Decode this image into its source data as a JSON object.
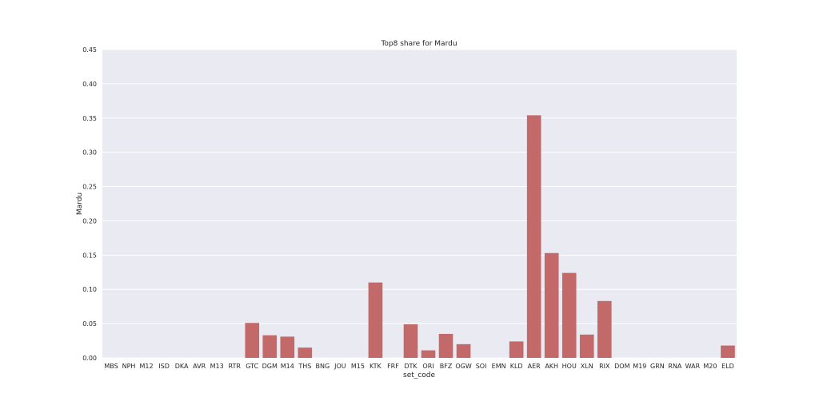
{
  "chart_data": {
    "type": "bar",
    "title": "Top8 share for Mardu",
    "xlabel": "set_code",
    "ylabel": "Mardu",
    "ylim": [
      0,
      0.45
    ],
    "yticks": [
      "0.00",
      "0.05",
      "0.10",
      "0.15",
      "0.20",
      "0.25",
      "0.30",
      "0.35",
      "0.40",
      "0.45"
    ],
    "grid": true,
    "bar_color": "#c4696a",
    "background_color": "#eaeaf2",
    "categories": [
      "MBS",
      "NPH",
      "M12",
      "ISD",
      "DKA",
      "AVR",
      "M13",
      "RTR",
      "GTC",
      "DGM",
      "M14",
      "THS",
      "BNG",
      "JOU",
      "M15",
      "KTK",
      "FRF",
      "DTK",
      "ORI",
      "BFZ",
      "OGW",
      "SOI",
      "EMN",
      "KLD",
      "AER",
      "AKH",
      "HOU",
      "XLN",
      "RIX",
      "DOM",
      "M19",
      "GRN",
      "RNA",
      "WAR",
      "M20",
      "ELD"
    ],
    "values": [
      0,
      0,
      0,
      0,
      0,
      0,
      0,
      0,
      0.051,
      0.033,
      0.031,
      0.015,
      0,
      0,
      0,
      0.11,
      0,
      0.049,
      0.011,
      0.035,
      0.02,
      0,
      0,
      0.024,
      0.354,
      0.153,
      0.124,
      0.034,
      0.083,
      0,
      0,
      0,
      0,
      0,
      0,
      0.018
    ]
  }
}
